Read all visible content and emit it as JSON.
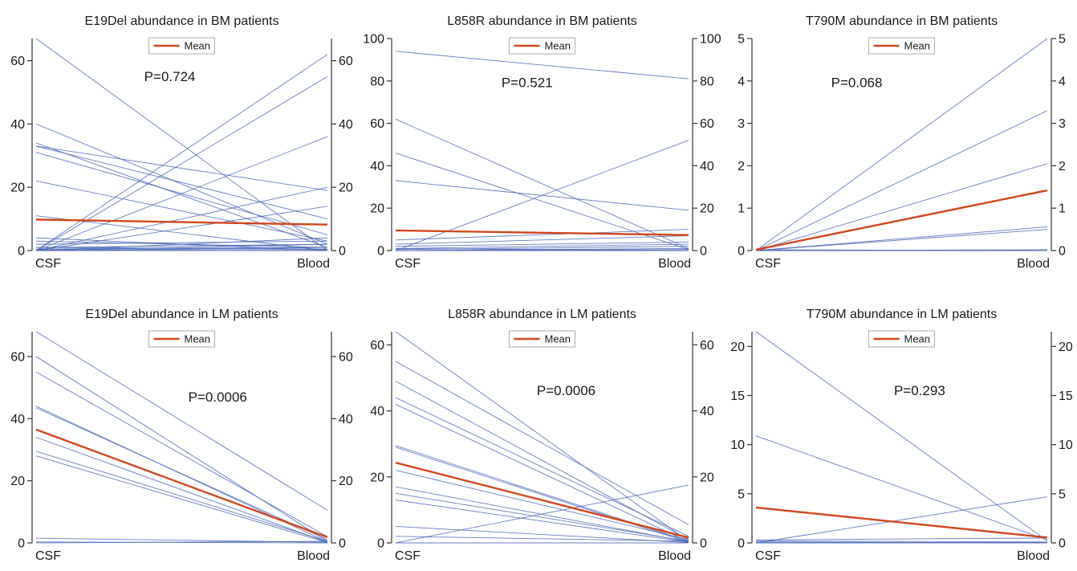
{
  "colors": {
    "patient": "#4a67b8",
    "mean": "#d2461e",
    "axis": "#333333"
  },
  "chart_data": [
    {
      "type": "line",
      "title": "E19Del abundance in BM patients",
      "categories": [
        "CSF",
        "Blood"
      ],
      "ylim": [
        0,
        67
      ],
      "yticks": [
        0,
        20,
        40,
        60
      ],
      "annotation": "P=0.724",
      "legend": {
        "label": "Mean",
        "position": "top-center"
      },
      "mean": {
        "name": "Mean",
        "values": [
          9.8,
          8.2
        ]
      },
      "patients": [
        [
          67,
          0
        ],
        [
          0,
          62
        ],
        [
          0,
          55
        ],
        [
          0,
          36
        ],
        [
          40,
          2
        ],
        [
          34,
          1
        ],
        [
          33,
          19
        ],
        [
          33,
          10
        ],
        [
          31,
          5
        ],
        [
          22,
          3
        ],
        [
          11,
          0
        ],
        [
          0,
          20
        ],
        [
          0,
          14
        ],
        [
          4,
          0
        ],
        [
          3,
          1
        ],
        [
          2,
          3
        ],
        [
          1,
          2
        ],
        [
          1,
          0.5
        ],
        [
          0.5,
          1
        ],
        [
          0,
          4
        ],
        [
          0,
          2
        ],
        [
          0,
          1
        ],
        [
          0,
          0
        ],
        [
          0.2,
          0.3
        ]
      ]
    },
    {
      "type": "line",
      "title": "L858R abundance in BM patients",
      "categories": [
        "CSF",
        "Blood"
      ],
      "ylim": [
        0,
        100
      ],
      "yticks": [
        0,
        20,
        40,
        60,
        80,
        100
      ],
      "annotation": "P=0.521",
      "legend": {
        "label": "Mean",
        "position": "top-center"
      },
      "mean": {
        "name": "Mean",
        "values": [
          9.5,
          7.3
        ]
      },
      "patients": [
        [
          94,
          81
        ],
        [
          62,
          1
        ],
        [
          46,
          0.5
        ],
        [
          33,
          19
        ],
        [
          0,
          52
        ],
        [
          5,
          10
        ],
        [
          3,
          7
        ],
        [
          2,
          4
        ],
        [
          1,
          3
        ],
        [
          0.5,
          2
        ],
        [
          0,
          1
        ],
        [
          0,
          0.5
        ],
        [
          0,
          0
        ],
        [
          1,
          0
        ]
      ]
    },
    {
      "type": "line",
      "title": "T790M abundance in BM patients",
      "categories": [
        "CSF",
        "Blood"
      ],
      "ylim": [
        0,
        5
      ],
      "yticks": [
        0,
        1,
        2,
        3,
        4,
        5
      ],
      "annotation": "P=0.068",
      "legend": {
        "label": "Mean",
        "position": "top-center"
      },
      "mean": {
        "name": "Mean",
        "values": [
          0.02,
          1.42
        ]
      },
      "patients": [
        [
          0,
          5
        ],
        [
          0,
          3.3
        ],
        [
          0,
          2.05
        ],
        [
          0,
          0.56
        ],
        [
          0,
          0.5
        ],
        [
          0,
          0.02
        ],
        [
          0,
          0
        ],
        [
          0.02,
          0
        ]
      ]
    },
    {
      "type": "line",
      "title": "E19Del abundance in LM patients",
      "categories": [
        "CSF",
        "Blood"
      ],
      "ylim": [
        0,
        68
      ],
      "yticks": [
        0,
        20,
        40,
        60
      ],
      "annotation": "P=0.0006",
      "legend": {
        "label": "Mean",
        "position": "top-center"
      },
      "mean": {
        "name": "Mean",
        "values": [
          36.5,
          1.8
        ]
      },
      "patients": [
        [
          68,
          10.5
        ],
        [
          60,
          0.5
        ],
        [
          55,
          2
        ],
        [
          44,
          0.3
        ],
        [
          43.5,
          1
        ],
        [
          34,
          0.2
        ],
        [
          29.5,
          0.5
        ],
        [
          28,
          0.1
        ],
        [
          1.5,
          0.2
        ],
        [
          0,
          0.5
        ],
        [
          0.3,
          0
        ]
      ]
    },
    {
      "type": "line",
      "title": "L858R abundance in LM patients",
      "categories": [
        "CSF",
        "Blood"
      ],
      "ylim": [
        0,
        64
      ],
      "yticks": [
        0,
        20,
        40,
        60
      ],
      "annotation": "P=0.0006",
      "legend": {
        "label": "Mean",
        "position": "top-center"
      },
      "mean": {
        "name": "Mean",
        "values": [
          24.3,
          1.6
        ]
      },
      "patients": [
        [
          64,
          0.5
        ],
        [
          55,
          5.5
        ],
        [
          49,
          1
        ],
        [
          44,
          2
        ],
        [
          42,
          0.3
        ],
        [
          29.5,
          0.5
        ],
        [
          29,
          0.2
        ],
        [
          22,
          1
        ],
        [
          17,
          0.3
        ],
        [
          15,
          0.5
        ],
        [
          13,
          0.2
        ],
        [
          5,
          0.1
        ],
        [
          2,
          0.5
        ],
        [
          0,
          17.5
        ],
        [
          0,
          0
        ]
      ]
    },
    {
      "type": "line",
      "title": "T790M abundance in LM patients",
      "categories": [
        "CSF",
        "Blood"
      ],
      "ylim": [
        0,
        21.5
      ],
      "yticks": [
        0,
        5,
        10,
        15,
        20
      ],
      "annotation": "P=0.293",
      "legend": {
        "label": "Mean",
        "position": "top-center"
      },
      "mean": {
        "name": "Mean",
        "values": [
          3.6,
          0.55
        ]
      },
      "patients": [
        [
          21.5,
          0.2
        ],
        [
          10.9,
          0.3
        ],
        [
          0,
          4.7
        ],
        [
          0.3,
          0.5
        ],
        [
          0.2,
          0.1
        ],
        [
          0.1,
          0
        ],
        [
          0,
          0.05
        ],
        [
          0,
          0
        ]
      ]
    }
  ]
}
